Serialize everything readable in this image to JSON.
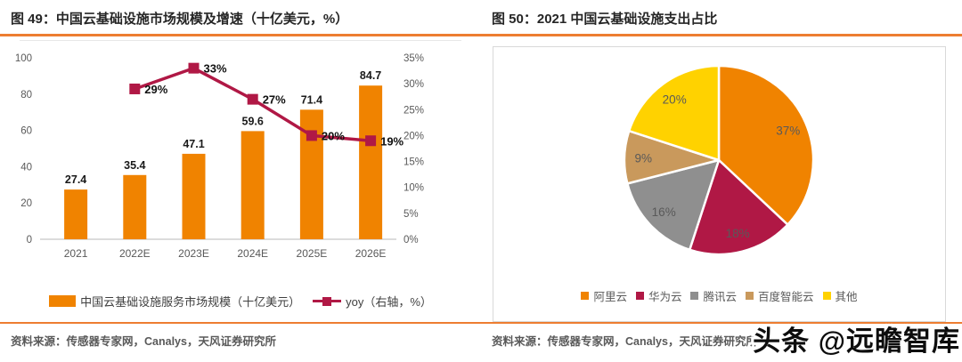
{
  "colors": {
    "accent_rule": "#ED7D31",
    "bar_orange": "#F08300",
    "line_crimson": "#B01845",
    "axis_text": "#595959",
    "bar_label_text": "#1a1a1a",
    "baseline": "#D0D0D0",
    "pie_label_text": "#595959",
    "box_border": "#D9D9D9"
  },
  "left_panel": {
    "title": "图 49：中国云基础设施市场规模及增速（十亿美元，%）",
    "source": "资料来源：传感器专家网，Canalys，天风证券研究所"
  },
  "right_panel": {
    "title": "图 50：2021 中国云基础设施支出占比",
    "source": "资料来源：传感器专家网，Canalys，天风证券研究所"
  },
  "watermark": "头条 @远瞻智库",
  "chart_data": [
    {
      "type": "bar+line",
      "title": "中国云基础设施市场规模及增速（十亿美元，%）",
      "categories": [
        "2021",
        "2022E",
        "2023E",
        "2024E",
        "2025E",
        "2026E"
      ],
      "series": [
        {
          "name": "中国云基础设施服务市场规模（十亿美元）",
          "chart_type": "bar",
          "axis": "left",
          "color": "#F08300",
          "values": [
            27.4,
            35.4,
            47.1,
            59.6,
            71.4,
            84.7
          ],
          "value_labels": [
            "27.4",
            "35.4",
            "47.1",
            "59.6",
            "71.4",
            "84.7"
          ]
        },
        {
          "name": "yoy（右轴，%）",
          "chart_type": "line",
          "axis": "right",
          "color": "#B01845",
          "values": [
            null,
            29,
            33,
            27,
            20,
            19
          ],
          "value_labels": [
            null,
            "29%",
            "33%",
            "27%",
            "20%",
            "19%"
          ]
        }
      ],
      "left_axis": {
        "min": 0,
        "max": 100,
        "step": 20,
        "ticks": [
          "0",
          "20",
          "40",
          "60",
          "80",
          "100"
        ]
      },
      "right_axis": {
        "min": 0,
        "max": 35,
        "step": 5,
        "ticks": [
          "0%",
          "5%",
          "10%",
          "15%",
          "20%",
          "25%",
          "30%",
          "35%"
        ]
      },
      "grid": false,
      "legend_position": "bottom"
    },
    {
      "type": "pie",
      "title": "2021 中国云基础设施支出占比",
      "start_angle_deg": -90,
      "direction": "clockwise",
      "legend_position": "bottom",
      "slices": [
        {
          "label": "阿里云",
          "value": 37,
          "pct_label": "37%",
          "color": "#F08300"
        },
        {
          "label": "华为云",
          "value": 18,
          "pct_label": "18%",
          "color": "#B01845"
        },
        {
          "label": "腾讯云",
          "value": 16,
          "pct_label": "16%",
          "color": "#8F8F8F"
        },
        {
          "label": "百度智能云",
          "value": 9,
          "pct_label": "9%",
          "color": "#C9995C"
        },
        {
          "label": "其他",
          "value": 20,
          "pct_label": "20%",
          "color": "#FFD200"
        }
      ]
    }
  ]
}
